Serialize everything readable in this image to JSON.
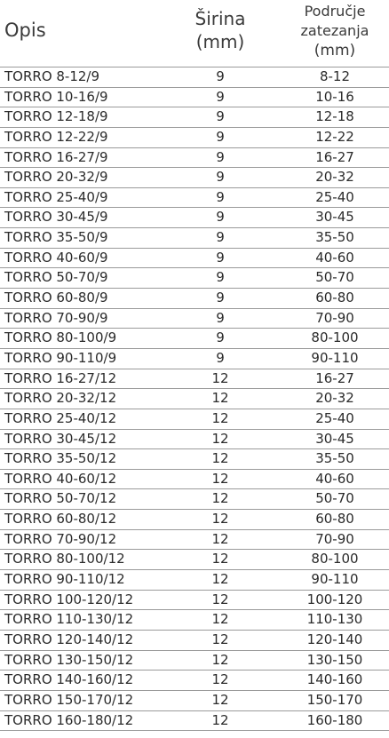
{
  "headers": {
    "opis": "Opis",
    "sirina_line1": "Širina",
    "sirina_line2": "(mm)",
    "podrucje_line1": "Područje",
    "podrucje_line2": "zatezanja",
    "podrucje_line3": "(mm)"
  },
  "rows": [
    {
      "opis": "TORRO 8-12/9",
      "sirina": "9",
      "range": "8-12"
    },
    {
      "opis": "TORRO 10-16/9",
      "sirina": "9",
      "range": "10-16"
    },
    {
      "opis": "TORRO 12-18/9",
      "sirina": "9",
      "range": "12-18"
    },
    {
      "opis": "TORRO 12-22/9",
      "sirina": "9",
      "range": "12-22"
    },
    {
      "opis": "TORRO 16-27/9",
      "sirina": "9",
      "range": "16-27"
    },
    {
      "opis": "TORRO 20-32/9",
      "sirina": "9",
      "range": "20-32"
    },
    {
      "opis": "TORRO 25-40/9",
      "sirina": "9",
      "range": "25-40"
    },
    {
      "opis": "TORRO 30-45/9",
      "sirina": "9",
      "range": "30-45"
    },
    {
      "opis": "TORRO 35-50/9",
      "sirina": "9",
      "range": "35-50"
    },
    {
      "opis": "TORRO 40-60/9",
      "sirina": "9",
      "range": "40-60"
    },
    {
      "opis": "TORRO 50-70/9",
      "sirina": "9",
      "range": "50-70"
    },
    {
      "opis": "TORRO 60-80/9",
      "sirina": "9",
      "range": "60-80"
    },
    {
      "opis": "TORRO 70-90/9",
      "sirina": "9",
      "range": "70-90"
    },
    {
      "opis": "TORRO 80-100/9",
      "sirina": "9",
      "range": "80-100"
    },
    {
      "opis": "TORRO 90-110/9",
      "sirina": "9",
      "range": "90-110"
    },
    {
      "opis": "TORRO 16-27/12",
      "sirina": "12",
      "range": "16-27"
    },
    {
      "opis": "TORRO 20-32/12",
      "sirina": "12",
      "range": "20-32"
    },
    {
      "opis": "TORRO 25-40/12",
      "sirina": "12",
      "range": "25-40"
    },
    {
      "opis": "TORRO 30-45/12",
      "sirina": "12",
      "range": "30-45"
    },
    {
      "opis": "TORRO 35-50/12",
      "sirina": "12",
      "range": "35-50"
    },
    {
      "opis": "TORRO 40-60/12",
      "sirina": "12",
      "range": "40-60"
    },
    {
      "opis": "TORRO 50-70/12",
      "sirina": "12",
      "range": "50-70"
    },
    {
      "opis": "TORRO 60-80/12",
      "sirina": "12",
      "range": "60-80"
    },
    {
      "opis": "TORRO 70-90/12",
      "sirina": "12",
      "range": "70-90"
    },
    {
      "opis": "TORRO 80-100/12",
      "sirina": "12",
      "range": "80-100"
    },
    {
      "opis": "TORRO 90-110/12",
      "sirina": "12",
      "range": "90-110"
    },
    {
      "opis": "TORRO 100-120/12",
      "sirina": "12",
      "range": "100-120"
    },
    {
      "opis": "TORRO 110-130/12",
      "sirina": "12",
      "range": "110-130"
    },
    {
      "opis": "TORRO 120-140/12",
      "sirina": "12",
      "range": "120-140"
    },
    {
      "opis": "TORRO 130-150/12",
      "sirina": "12",
      "range": "130-150"
    },
    {
      "opis": "TORRO 140-160/12",
      "sirina": "12",
      "range": "140-160"
    },
    {
      "opis": "TORRO 150-170/12",
      "sirina": "12",
      "range": "150-170"
    },
    {
      "opis": "TORRO 160-180/12",
      "sirina": "12",
      "range": "160-180"
    }
  ]
}
